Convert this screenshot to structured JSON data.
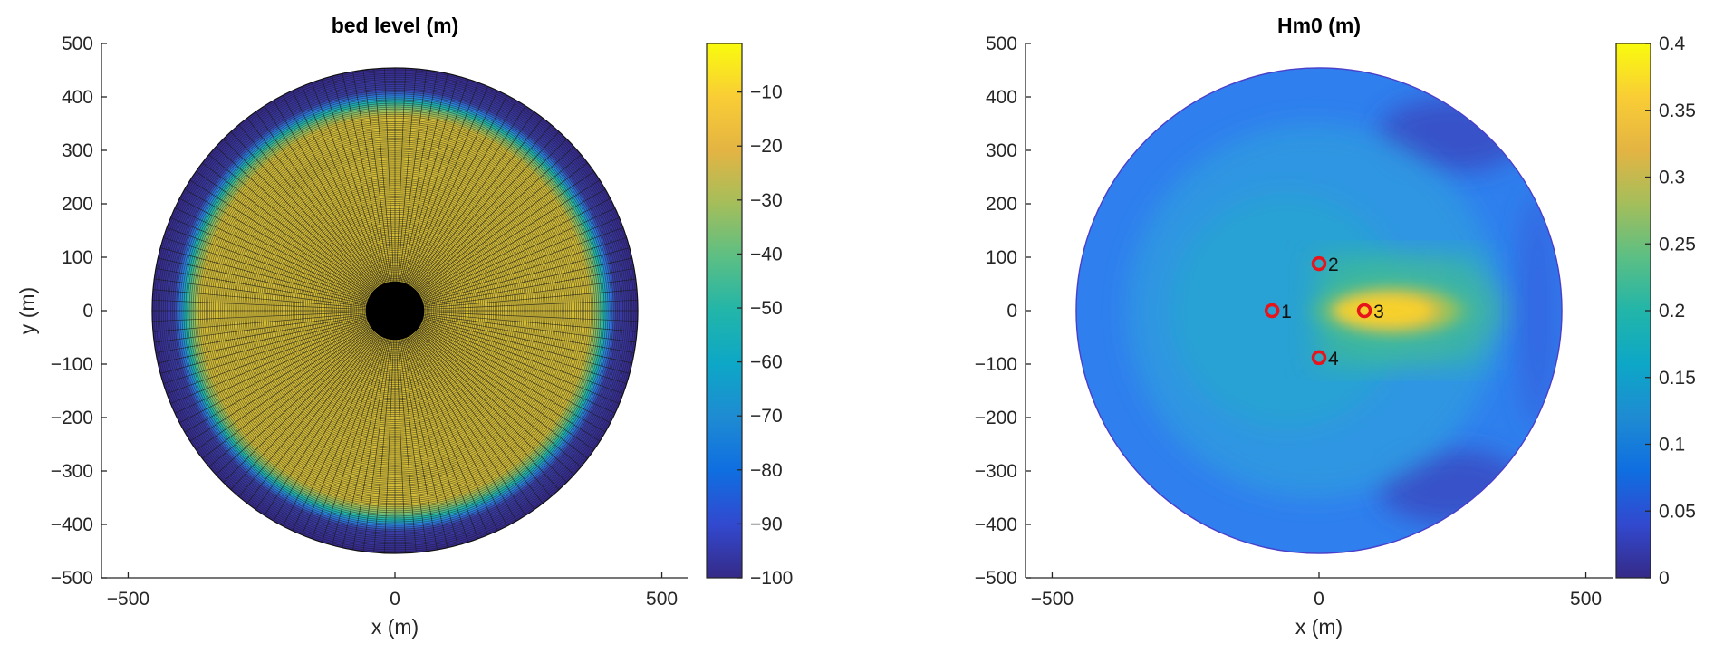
{
  "chart_data": [
    {
      "type": "heatmap",
      "title": "bed level (m)",
      "xlabel": "x (m)",
      "ylabel": "y (m)",
      "xlim": [
        -550,
        550
      ],
      "ylim": [
        -500,
        500
      ],
      "xticks": [
        -500,
        0,
        500
      ],
      "yticks": [
        500,
        400,
        300,
        200,
        100,
        0,
        -100,
        -200,
        -300,
        -400,
        -500
      ],
      "grid": false,
      "domain": {
        "shape": "circle",
        "center": [
          0,
          0
        ],
        "radius": 455,
        "inner_radius": 55
      },
      "colorbar": {
        "colormap": "parula",
        "limits": [
          -100,
          -1
        ],
        "ticks": [
          -10,
          -20,
          -30,
          -40,
          -50,
          -60,
          -70,
          -80,
          -90,
          -100
        ]
      },
      "radial_profile": [
        {
          "r": 55,
          "value": -5
        },
        {
          "r": 370,
          "value": -5
        },
        {
          "r": 385,
          "value": -35
        },
        {
          "r": 395,
          "value": -65
        },
        {
          "r": 410,
          "value": -95
        },
        {
          "r": 455,
          "value": -97
        }
      ],
      "mesh": {
        "visible": true,
        "radial_lines": 144,
        "rings": 120
      }
    },
    {
      "type": "heatmap",
      "title": "Hm0 (m)",
      "xlabel": "x (m)",
      "ylabel": "",
      "xlim": [
        -550,
        550
      ],
      "ylim": [
        -500,
        500
      ],
      "xticks": [
        -500,
        0,
        500
      ],
      "yticks": [
        500,
        400,
        300,
        200,
        100,
        0,
        -100,
        -200,
        -300,
        -400,
        -500
      ],
      "grid": false,
      "domain": {
        "shape": "circle",
        "center": [
          0,
          0
        ],
        "radius": 455
      },
      "colorbar": {
        "colormap": "parula",
        "limits": [
          0,
          0.4
        ],
        "ticks": [
          "0.4",
          "0.35",
          "0.3",
          "0.25",
          "0.2",
          "0.15",
          "0.1",
          "0.05",
          "0"
        ]
      },
      "field": {
        "background": 0.11,
        "inner_zone": {
          "center": [
            0,
            0
          ],
          "radius": 370,
          "value": 0.16
        },
        "shadow_arc_value": 0.06,
        "hotspot": {
          "center": [
            140,
            0
          ],
          "value": 0.37
        },
        "plume": {
          "x_range": [
            0,
            345
          ],
          "half_width": 110,
          "value": 0.22
        }
      },
      "points": [
        {
          "label": "1",
          "x": -88,
          "y": 0
        },
        {
          "label": "2",
          "x": 0,
          "y": 88
        },
        {
          "label": "3",
          "x": 85,
          "y": 0
        },
        {
          "label": "4",
          "x": 0,
          "y": -88
        }
      ],
      "marker_color": "#e8141b"
    }
  ]
}
